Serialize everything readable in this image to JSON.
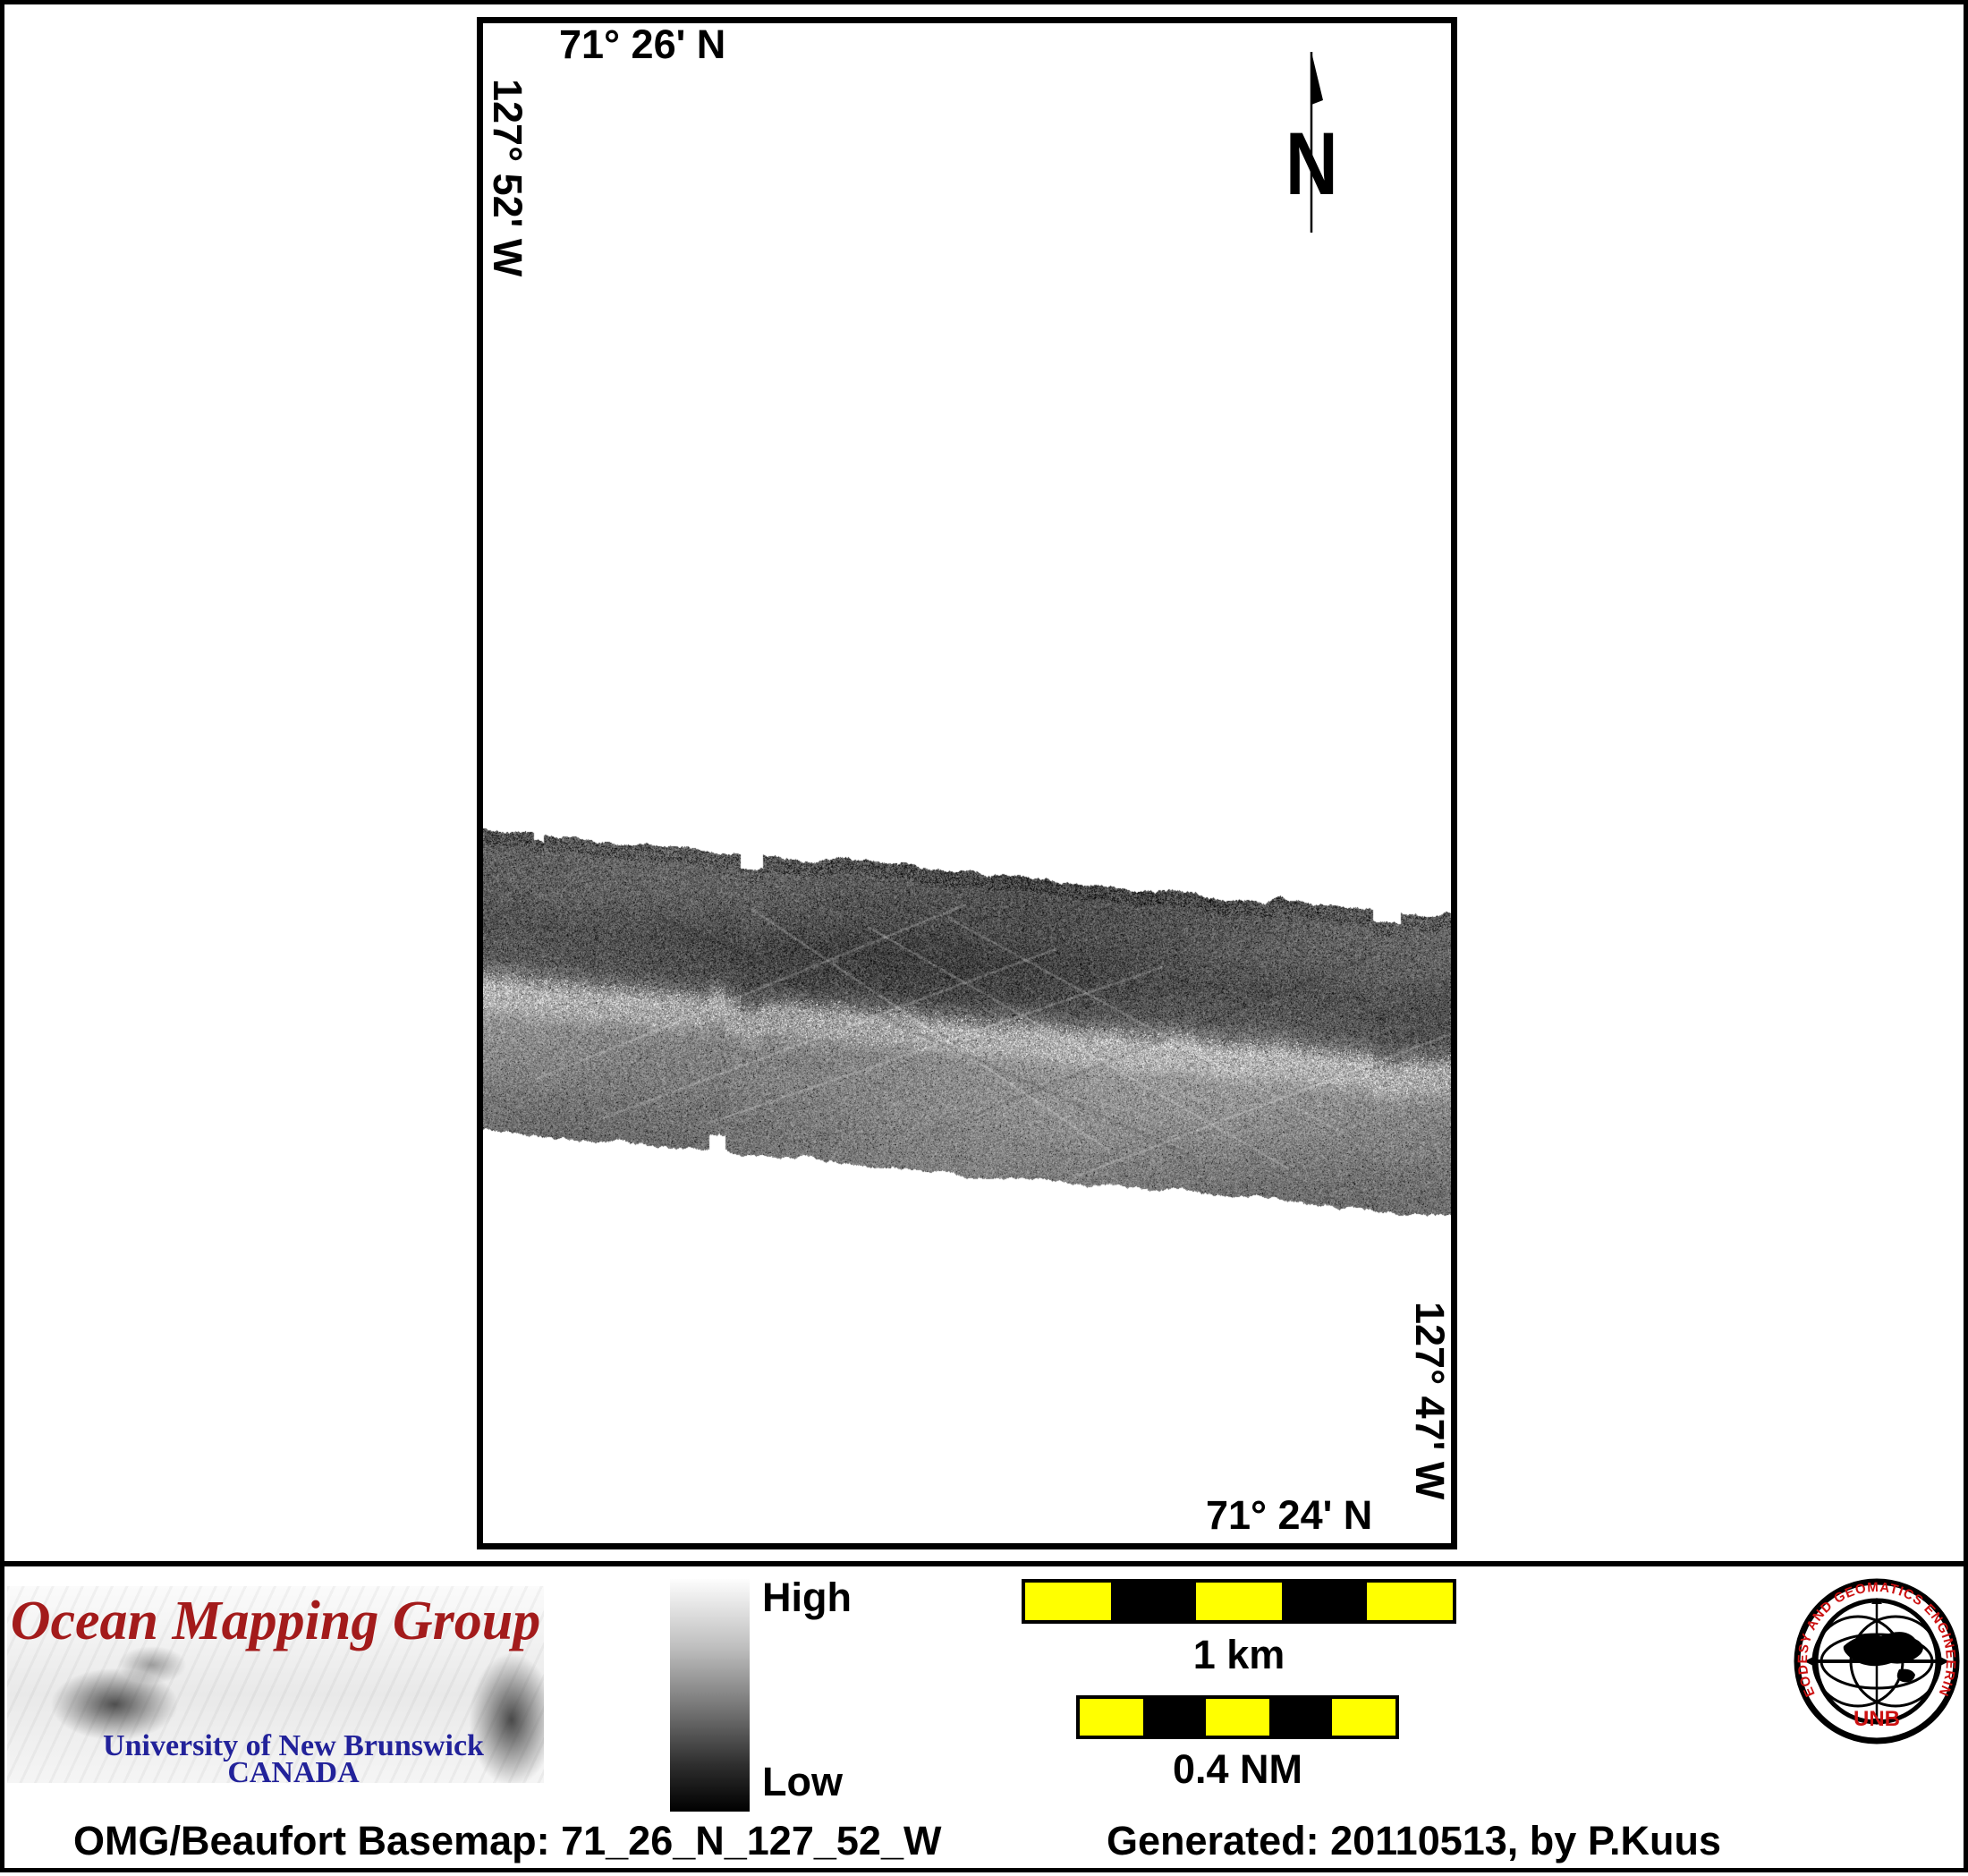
{
  "map": {
    "top_coord": "71° 26' N",
    "left_coord": "127° 52' W",
    "right_coord": "127° 47' W",
    "bottom_coord": "71° 24' N",
    "north_label": "N"
  },
  "legend": {
    "high_label": "High",
    "low_label": "Low"
  },
  "scalebars": {
    "km_label": "1 km",
    "nm_label": "0.4 NM"
  },
  "logo": {
    "title": "Ocean Mapping Group",
    "institution": "University of New Brunswick",
    "country": "CANADA"
  },
  "seal": {
    "ring_text": "GEODESY AND GEOMATICS ENGINEERING",
    "center_text": "UNB"
  },
  "caption": {
    "basemap": "OMG/Beaufort Basemap: 71_26_N_127_52_W",
    "generated": "Generated: 20110513, by P.Kuus"
  },
  "colors": {
    "scalebar_yellow": "#ffff00",
    "logo_red": "#a31b1b",
    "logo_blue": "#22229a",
    "seal_red": "#cc1111",
    "frame_black": "#000000"
  }
}
